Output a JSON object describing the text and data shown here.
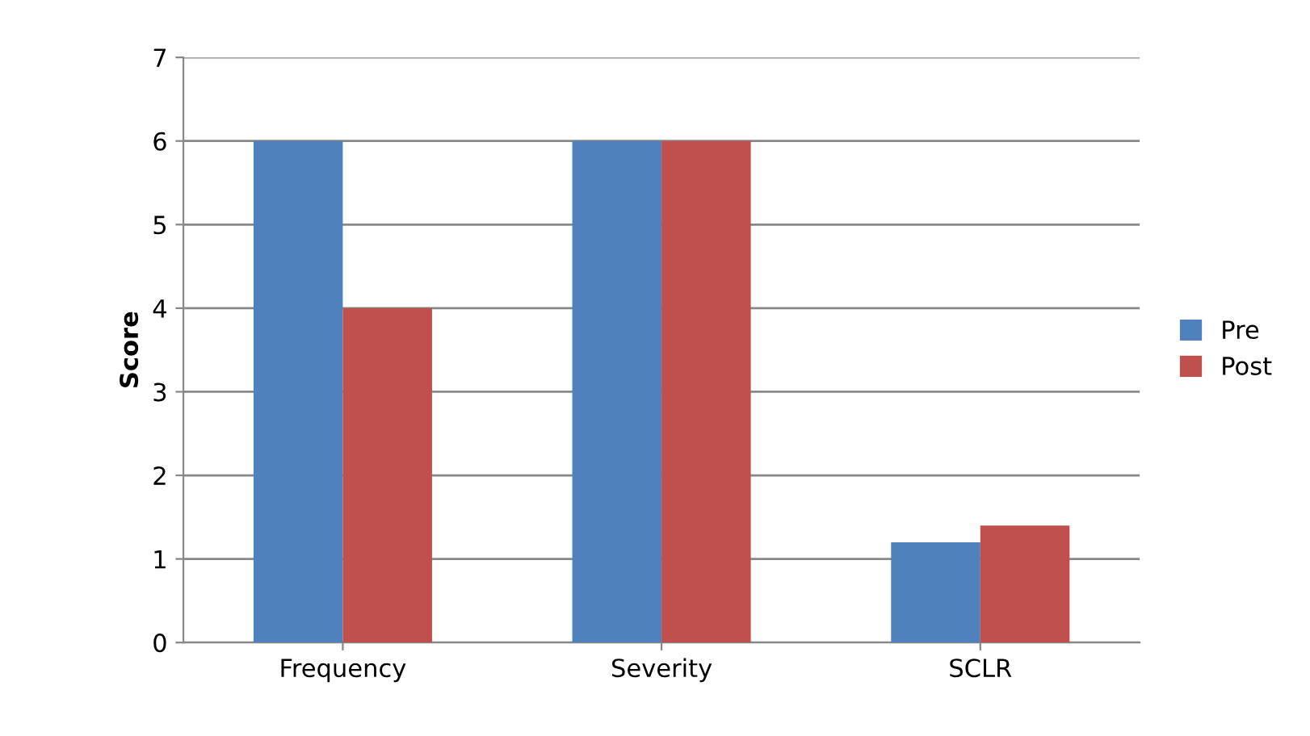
{
  "chart_data": {
    "type": "bar",
    "ylabel": "Score",
    "categories": [
      "Frequency",
      "Severity",
      "SCLR"
    ],
    "series": [
      {
        "name": "Pre",
        "color": "#4f81bd",
        "values": [
          6,
          6,
          1.2
        ]
      },
      {
        "name": "Post",
        "color": "#c0504d",
        "values": [
          4,
          6,
          1.4
        ]
      }
    ],
    "ylim": [
      0,
      7
    ],
    "yticks": [
      0,
      1,
      2,
      3,
      4,
      5,
      6,
      7
    ],
    "grid": "y",
    "legend": "right"
  }
}
